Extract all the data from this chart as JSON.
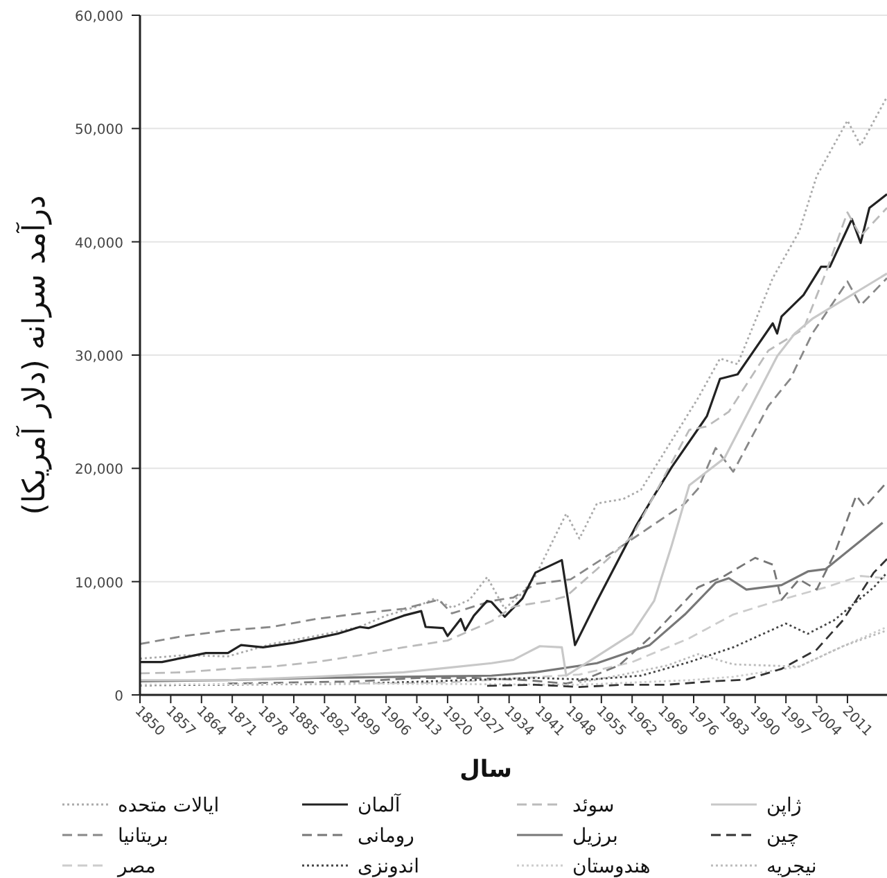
{
  "chart_data": {
    "type": "line",
    "xlabel": "سال",
    "ylabel": "درآمد سرانه (دلار آمریکا)",
    "xlim": [
      1850,
      2020
    ],
    "xticks": [
      1850,
      1857,
      1864,
      1871,
      1878,
      1885,
      1892,
      1899,
      1906,
      1913,
      1920,
      1927,
      1934,
      1941,
      1948,
      1955,
      1962,
      1969,
      1976,
      1983,
      1990,
      1997,
      2004,
      2011
    ],
    "ylim": [
      0,
      60000
    ],
    "yticks": [
      {
        "value": 0,
        "label": "0"
      },
      {
        "value": 10000,
        "label": "10,000"
      },
      {
        "value": 20000,
        "label": "20,000"
      },
      {
        "value": 30000,
        "label": "30,000"
      },
      {
        "value": 40000,
        "label": "40,000"
      },
      {
        "value": 50000,
        "label": "50,000"
      },
      {
        "value": 60000,
        "label": "60,000"
      }
    ],
    "grid": "y",
    "legend": "bottom",
    "marker": "none",
    "series": [
      {
        "name": "ایالات متحده",
        "color": "#aaaaaa",
        "line_style": "dotted",
        "x": [
          1850,
          1860,
          1870,
          1880,
          1890,
          1900,
          1906,
          1913,
          1917,
          1921,
          1925,
          1929,
          1933,
          1937,
          1940,
          1947,
          1950,
          1954,
          1960,
          1964,
          1973,
          1977,
          1982,
          1986,
          1994,
          2000,
          2004,
          2011,
          2014,
          2020
        ],
        "values": [
          3200,
          3500,
          3400,
          4500,
          5200,
          6000,
          7000,
          7800,
          8500,
          7700,
          8400,
          10400,
          7600,
          9000,
          10500,
          16000,
          13800,
          16900,
          17300,
          18100,
          23700,
          26200,
          29700,
          29200,
          36800,
          40900,
          45800,
          50700,
          48500,
          52800
        ]
      },
      {
        "name": "بریتانیا",
        "color": "#888888",
        "line_style": "dashed",
        "x": [
          1850,
          1860,
          1870,
          1880,
          1890,
          1900,
          1910,
          1918,
          1921,
          1930,
          1935,
          1940,
          1948,
          1958,
          1966,
          1974,
          1977,
          1981,
          1985,
          1993,
          1998,
          2003,
          2011,
          2014,
          2020
        ],
        "values": [
          4500,
          5200,
          5700,
          6000,
          6700,
          7200,
          7600,
          8400,
          7200,
          8300,
          8600,
          9800,
          10200,
          12700,
          14800,
          16900,
          18200,
          21800,
          19700,
          25500,
          27900,
          31900,
          36500,
          34400,
          36800
        ]
      },
      {
        "name": "مصر",
        "color": "#cccccc",
        "line_style": "dashed",
        "x": [
          1900,
          1920,
          1950,
          1962,
          1975,
          1985,
          1995,
          2006,
          2014,
          2020
        ],
        "values": [
          1000,
          1100,
          1800,
          2900,
          5000,
          7100,
          8300,
          9500,
          10500,
          10300
        ]
      },
      {
        "name": "آلمان",
        "color": "#222222",
        "line_style": "solid",
        "x": [
          1850,
          1855,
          1860,
          1865,
          1870,
          1873,
          1878,
          1885,
          1890,
          1895,
          1900,
          1902,
          1910,
          1914,
          1915,
          1919,
          1920,
          1923,
          1924,
          1926,
          1929,
          1930,
          1933,
          1937,
          1940,
          1946,
          1949,
          1954,
          1963,
          1967,
          1971,
          1979,
          1982,
          1986,
          1994,
          1995,
          1996,
          2001,
          2005,
          2007,
          2012,
          2014,
          2016,
          2020
        ],
        "values": [
          2900,
          2900,
          3300,
          3700,
          3700,
          4400,
          4200,
          4600,
          5000,
          5400,
          6000,
          5900,
          7000,
          7400,
          6000,
          5900,
          5200,
          6700,
          5700,
          7000,
          8300,
          8200,
          6900,
          8500,
          10800,
          11900,
          4400,
          8300,
          15000,
          17600,
          20100,
          24600,
          27900,
          28300,
          32800,
          31900,
          33400,
          35300,
          37800,
          37800,
          42000,
          39900,
          43000,
          44200
        ]
      },
      {
        "name": "رومانی",
        "color": "#777777",
        "line_style": "dashed",
        "x": [
          1870,
          1900,
          1913,
          1926,
          1938,
          1947,
          1951,
          1959,
          1967,
          1977,
          1983,
          1990,
          1994,
          1996,
          2000,
          2004,
          2008,
          2013,
          2015,
          2020
        ],
        "values": [
          1000,
          1200,
          1500,
          1500,
          1300,
          1000,
          1350,
          2600,
          5400,
          9500,
          10500,
          12100,
          11500,
          8400,
          10200,
          9300,
          12400,
          17600,
          16600,
          18800
        ]
      },
      {
        "name": "اندونزی",
        "color": "#444444",
        "line_style": "dotted",
        "x": [
          1850,
          1900,
          1940,
          1952,
          1964,
          1975,
          1985,
          1997,
          2002,
          2008,
          2017,
          2020
        ],
        "values": [
          850,
          1000,
          1500,
          1350,
          1700,
          2900,
          4200,
          6300,
          5400,
          6600,
          9500,
          10800
        ]
      },
      {
        "name": "سوئد",
        "color": "#bbbbbb",
        "line_style": "dashed",
        "x": [
          1850,
          1860,
          1870,
          1880,
          1890,
          1900,
          1910,
          1920,
          1930,
          1935,
          1943,
          1947,
          1954,
          1962,
          1975,
          1979,
          1984,
          1993,
          2001,
          2006,
          2011,
          2014,
          2020
        ],
        "values": [
          1900,
          2000,
          2300,
          2500,
          2900,
          3500,
          4200,
          4800,
          6500,
          7800,
          8300,
          8700,
          11100,
          14000,
          23400,
          23700,
          25000,
          30400,
          32300,
          37200,
          42600,
          40500,
          43000
        ]
      },
      {
        "name": "برزیل",
        "color": "#777777",
        "line_style": "solid",
        "x": [
          1850,
          1870,
          1890,
          1910,
          1930,
          1940,
          1954,
          1966,
          1974,
          1981,
          1984,
          1988,
          1996,
          2002,
          2006,
          2014,
          2019
        ],
        "values": [
          1200,
          1300,
          1500,
          1600,
          1700,
          2000,
          2800,
          4400,
          7100,
          9900,
          10300,
          9300,
          9700,
          10900,
          11100,
          13600,
          15200
        ]
      },
      {
        "name": "هندوستان",
        "color": "#cccccc",
        "line_style": "dotted",
        "x": [
          1850,
          1900,
          1950,
          1975,
          1985,
          2000,
          2010,
          2020
        ],
        "values": [
          900,
          1000,
          900,
          1300,
          1600,
          2500,
          4300,
          6000
        ]
      },
      {
        "name": "ژاپن",
        "color": "#c8c8c8",
        "line_style": "solid",
        "x": [
          1850,
          1870,
          1890,
          1910,
          1920,
          1930,
          1935,
          1941,
          1946,
          1947,
          1954,
          1962,
          1967,
          1971,
          1975,
          1983,
          1995,
          1999,
          2003,
          2020
        ],
        "values": [
          1300,
          1300,
          1600,
          2000,
          2400,
          2800,
          3100,
          4300,
          4200,
          1700,
          3400,
          5400,
          8300,
          13200,
          18500,
          20900,
          29900,
          31900,
          33200,
          37200
        ]
      },
      {
        "name": "چین",
        "color": "#333333",
        "line_style": "dashed",
        "x": [
          1929,
          1940,
          1950,
          1960,
          1970,
          1980,
          1988,
          1996,
          2004,
          2010,
          2017,
          2020
        ],
        "values": [
          800,
          900,
          700,
          900,
          900,
          1200,
          1350,
          2300,
          4000,
          6600,
          10800,
          12000
        ]
      },
      {
        "name": "نیجریه",
        "color": "#bbbbbb",
        "line_style": "dotted",
        "x": [
          1950,
          1960,
          1970,
          1977,
          1985,
          2000,
          2010,
          2020
        ],
        "values": [
          1100,
          1800,
          2600,
          3600,
          2700,
          2500,
          4300,
          5700
        ]
      }
    ]
  }
}
